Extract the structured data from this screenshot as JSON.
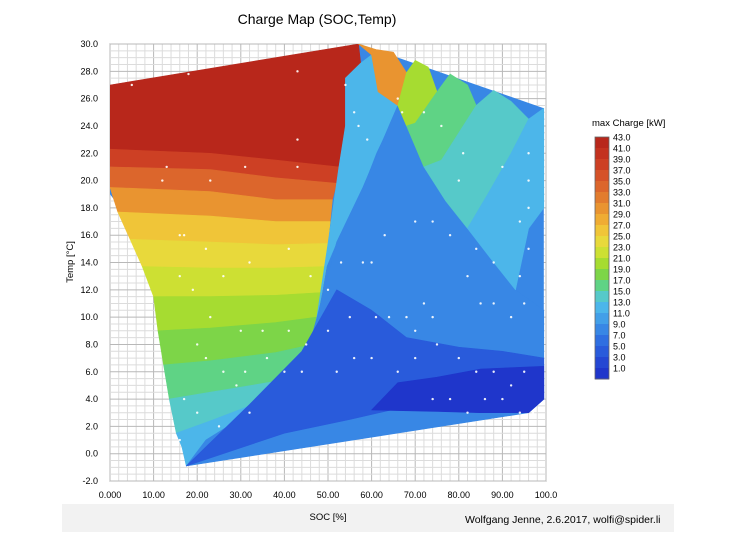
{
  "chart_data": {
    "type": "heatmap",
    "title": "Charge Map (SOC,Temp)",
    "xlabel": "SOC [%]",
    "ylabel": "Temp [°C]",
    "xlim": [
      0,
      100
    ],
    "ylim": [
      -2,
      30
    ],
    "x_tick_labels": [
      "0.000",
      "10.00",
      "20.00",
      "30.00",
      "40.00",
      "50.00",
      "60.00",
      "70.00",
      "80.00",
      "90.00",
      "100.0"
    ],
    "y_tick_labels": [
      "-2.0",
      "0.0",
      "2.0",
      "4.0",
      "6.0",
      "8.0",
      "10.0",
      "12.0",
      "14.0",
      "16.0",
      "18.0",
      "20.0",
      "22.0",
      "24.0",
      "26.0",
      "28.0",
      "30.0"
    ],
    "grid": true,
    "colorbar": {
      "title": "max Charge [kW]",
      "placement": "right",
      "labels": [
        "43.0",
        "41.0",
        "39.0",
        "37.0",
        "35.0",
        "33.0",
        "31.0",
        "29.0",
        "27.0",
        "25.0",
        "23.0",
        "21.0",
        "19.0",
        "17.0",
        "15.0",
        "13.0",
        "11.0",
        "9.0",
        "7.0",
        "5.0",
        "3.0",
        "1.0"
      ],
      "colors": [
        "#b8271b",
        "#c3321f",
        "#cd4024",
        "#d55228",
        "#dc662c",
        "#e27c2e",
        "#e99430",
        "#efac33",
        "#f0c538",
        "#e8d93b",
        "#cde033",
        "#a6dc31",
        "#7dd548",
        "#5fd385",
        "#56c9c9",
        "#4cb6ea",
        "#429fe8",
        "#3887e5",
        "#2f6fe1",
        "#295bdb",
        "#2447d3",
        "#1f36cb"
      ]
    },
    "hull": [
      [
        0,
        27
      ],
      [
        57,
        30
      ],
      [
        99.5,
        25.3
      ],
      [
        99.5,
        4
      ],
      [
        96,
        3
      ],
      [
        17.5,
        -0.9
      ],
      [
        16.5,
        2
      ],
      [
        12,
        14
      ],
      [
        0,
        19
      ]
    ],
    "contours": [
      {
        "label": "43.0",
        "points": [
          [
            0,
            27
          ],
          [
            57,
            30
          ],
          [
            57.5,
            28.6
          ],
          [
            54,
            27.5
          ],
          [
            54,
            24
          ],
          [
            52.5,
            21
          ],
          [
            38,
            21.5
          ],
          [
            23,
            22
          ],
          [
            0,
            22.3
          ]
        ]
      },
      {
        "label": "39.0",
        "points": [
          [
            0,
            22.3
          ],
          [
            23,
            22
          ],
          [
            38,
            21.5
          ],
          [
            52.5,
            21
          ],
          [
            52,
            19.8
          ],
          [
            38,
            20.2
          ],
          [
            23,
            20.8
          ],
          [
            0,
            21
          ]
        ]
      },
      {
        "label": "35.0",
        "points": [
          [
            0,
            21
          ],
          [
            23,
            20.8
          ],
          [
            38,
            20.2
          ],
          [
            52,
            19.8
          ],
          [
            51,
            18.6
          ],
          [
            38,
            18.6
          ],
          [
            23,
            19.2
          ],
          [
            0,
            19.5
          ]
        ]
      },
      {
        "label": "31.0",
        "points": [
          [
            0,
            19.5
          ],
          [
            23,
            19.2
          ],
          [
            38,
            18.6
          ],
          [
            51,
            18.6
          ],
          [
            50.5,
            17
          ],
          [
            38,
            17
          ],
          [
            23,
            17.4
          ],
          [
            1.8,
            17.7
          ]
        ]
      },
      {
        "label": "27.0",
        "points": [
          [
            1.8,
            17.7
          ],
          [
            23,
            17.4
          ],
          [
            38,
            17
          ],
          [
            50.5,
            17
          ],
          [
            50,
            15.4
          ],
          [
            38,
            15.3
          ],
          [
            23,
            15.5
          ],
          [
            4.6,
            15.7
          ]
        ]
      },
      {
        "label": "25.0",
        "points": [
          [
            4.6,
            15.7
          ],
          [
            23,
            15.5
          ],
          [
            38,
            15.3
          ],
          [
            50,
            15.4
          ],
          [
            49.6,
            13.7
          ],
          [
            38,
            13.6
          ],
          [
            23,
            13.6
          ],
          [
            7.4,
            13.7
          ]
        ]
      },
      {
        "label": "23.0",
        "points": [
          [
            7.4,
            13.7
          ],
          [
            23,
            13.6
          ],
          [
            38,
            13.6
          ],
          [
            49.6,
            13.7
          ],
          [
            48.6,
            11.8
          ],
          [
            38,
            11.6
          ],
          [
            23,
            11.5
          ],
          [
            10,
            11.5
          ]
        ]
      },
      {
        "label": "21.0",
        "points": [
          [
            10,
            11.5
          ],
          [
            23,
            11.5
          ],
          [
            38,
            11.6
          ],
          [
            48.6,
            11.8
          ],
          [
            47.5,
            10
          ],
          [
            38,
            9.6
          ],
          [
            23,
            9.2
          ],
          [
            11,
            9
          ]
        ]
      },
      {
        "label": "19.0",
        "points": [
          [
            11,
            9
          ],
          [
            23,
            9.2
          ],
          [
            38,
            9.6
          ],
          [
            47.5,
            10
          ],
          [
            46.5,
            8
          ],
          [
            38,
            7.4
          ],
          [
            23,
            6.8
          ],
          [
            12.3,
            6.5
          ]
        ]
      },
      {
        "label": "17.0",
        "points": [
          [
            12.3,
            6.5
          ],
          [
            23,
            6.8
          ],
          [
            38,
            7.4
          ],
          [
            46.5,
            8
          ],
          [
            44,
            6
          ],
          [
            38,
            5.3
          ],
          [
            23,
            4.5
          ],
          [
            13.6,
            4
          ]
        ]
      },
      {
        "label": "15.0",
        "points": [
          [
            13.6,
            4
          ],
          [
            23,
            4.5
          ],
          [
            38,
            5.3
          ],
          [
            44,
            6
          ],
          [
            38,
            4.5
          ],
          [
            32,
            3.5
          ],
          [
            23,
            2.4
          ],
          [
            15.2,
            1.5
          ]
        ]
      },
      {
        "label": "13.0",
        "points": [
          [
            15.2,
            1.5
          ],
          [
            23,
            2.4
          ],
          [
            32,
            3.5
          ],
          [
            38,
            4.5
          ],
          [
            44,
            6
          ],
          [
            46.5,
            8
          ],
          [
            47.5,
            10
          ],
          [
            48.6,
            11.8
          ],
          [
            49.6,
            13.7
          ],
          [
            52,
            15.5
          ],
          [
            55,
            17.3
          ],
          [
            58,
            19.5
          ],
          [
            61,
            22
          ],
          [
            64,
            24
          ],
          [
            66,
            25.5
          ],
          [
            61.5,
            26.5
          ],
          [
            60,
            29.2
          ],
          [
            57.5,
            28.6
          ],
          [
            54,
            27.5
          ],
          [
            54,
            24
          ],
          [
            52.5,
            21
          ],
          [
            50,
            15.4
          ],
          [
            46.5,
            8
          ],
          [
            38,
            4.5
          ],
          [
            30,
            2.6
          ],
          [
            22,
            1
          ],
          [
            17.5,
            -0.9
          ],
          [
            16.5,
            0.5
          ]
        ]
      },
      {
        "label": "9.0",
        "points": [
          [
            17.5,
            -0.9
          ],
          [
            22,
            1
          ],
          [
            30,
            2.6
          ],
          [
            38,
            4.5
          ],
          [
            44,
            6
          ],
          [
            47.5,
            10
          ],
          [
            52,
            15.5
          ],
          [
            58,
            19.5
          ],
          [
            64,
            24
          ],
          [
            66,
            25.5
          ],
          [
            68,
            24
          ],
          [
            72,
            21
          ],
          [
            77,
            18.5
          ],
          [
            82,
            16.5
          ],
          [
            88,
            14
          ],
          [
            93,
            12
          ],
          [
            99.5,
            10.5
          ],
          [
            99.5,
            4
          ],
          [
            96,
            3
          ]
        ]
      },
      {
        "label": "5.0",
        "points": [
          [
            17.5,
            -0.9
          ],
          [
            40,
            1.5
          ],
          [
            55,
            2.5
          ],
          [
            70,
            3.6
          ],
          [
            82,
            3.2
          ],
          [
            96,
            3
          ],
          [
            99.5,
            4
          ],
          [
            99.5,
            7
          ],
          [
            90,
            7.5
          ],
          [
            80,
            7.8
          ],
          [
            68,
            8.5
          ],
          [
            60,
            10.5
          ],
          [
            52,
            12
          ],
          [
            44,
            7.5
          ],
          [
            32,
            3.6
          ]
        ]
      },
      {
        "label": "1.0",
        "points": [
          [
            60,
            3.2
          ],
          [
            75,
            3.1
          ],
          [
            85,
            3.0
          ],
          [
            96,
            3
          ],
          [
            99.5,
            4
          ],
          [
            99.5,
            6.4
          ],
          [
            92,
            6.3
          ],
          [
            85,
            6.2
          ],
          [
            75,
            5.6
          ],
          [
            66,
            5.2
          ]
        ]
      },
      {
        "label": "31.0",
        "points": [
          [
            57,
            30
          ],
          [
            60,
            29.2
          ],
          [
            61.5,
            26.5
          ],
          [
            66,
            25.5
          ],
          [
            68,
            27.9
          ],
          [
            65,
            29.4
          ],
          [
            61,
            29.6
          ]
        ]
      },
      {
        "label": "21.0",
        "points": [
          [
            66,
            25.5
          ],
          [
            68,
            27.9
          ],
          [
            70,
            28.8
          ],
          [
            73,
            28.3
          ],
          [
            75,
            26.5
          ],
          [
            70,
            24.2
          ],
          [
            68,
            24
          ]
        ]
      },
      {
        "label": "17.0",
        "points": [
          [
            68,
            24
          ],
          [
            70,
            24.2
          ],
          [
            75,
            26.5
          ],
          [
            78,
            27.8
          ],
          [
            82,
            27
          ],
          [
            84,
            25.5
          ],
          [
            80,
            23.5
          ],
          [
            76,
            21.5
          ],
          [
            72,
            21
          ]
        ]
      },
      {
        "label": "15.0",
        "points": [
          [
            72,
            21
          ],
          [
            76,
            21.5
          ],
          [
            80,
            23.5
          ],
          [
            84,
            25.5
          ],
          [
            88,
            26.6
          ],
          [
            92,
            25.8
          ],
          [
            96,
            24.5
          ],
          [
            92,
            22
          ],
          [
            87,
            19.2
          ],
          [
            82,
            16.5
          ],
          [
            77,
            18.5
          ]
        ]
      },
      {
        "label": "13.0",
        "points": [
          [
            82,
            16.5
          ],
          [
            87,
            19.2
          ],
          [
            92,
            22
          ],
          [
            96,
            24.5
          ],
          [
            99.5,
            25.3
          ],
          [
            99.5,
            18
          ],
          [
            96,
            16.5
          ],
          [
            93,
            12
          ],
          [
            88,
            14
          ]
        ]
      }
    ],
    "samples": [
      [
        5,
        27
      ],
      [
        18,
        27.8
      ],
      [
        43,
        28
      ],
      [
        54,
        27
      ],
      [
        23,
        20
      ],
      [
        31,
        21
      ],
      [
        43,
        21
      ],
      [
        43,
        23
      ],
      [
        59,
        23
      ],
      [
        12,
        20
      ],
      [
        13,
        21
      ],
      [
        16,
        16
      ],
      [
        17,
        16
      ],
      [
        22,
        15
      ],
      [
        26,
        13
      ],
      [
        32,
        14
      ],
      [
        41,
        15
      ],
      [
        46,
        13
      ],
      [
        50,
        12
      ],
      [
        53,
        14
      ],
      [
        58,
        14
      ],
      [
        60,
        14
      ],
      [
        63,
        16
      ],
      [
        70,
        17
      ],
      [
        74,
        17
      ],
      [
        78,
        16
      ],
      [
        84,
        15
      ],
      [
        88,
        14
      ],
      [
        94,
        13
      ],
      [
        96,
        15
      ],
      [
        85,
        11
      ],
      [
        82,
        13
      ],
      [
        88,
        11
      ],
      [
        92,
        10
      ],
      [
        95,
        11
      ],
      [
        72,
        11
      ],
      [
        74,
        10
      ],
      [
        70,
        9
      ],
      [
        68,
        10
      ],
      [
        64,
        10
      ],
      [
        61,
        10
      ],
      [
        55,
        10
      ],
      [
        50,
        9
      ],
      [
        45,
        8
      ],
      [
        41,
        9
      ],
      [
        35,
        9
      ],
      [
        30,
        9
      ],
      [
        23,
        10
      ],
      [
        19,
        12
      ],
      [
        16,
        13
      ],
      [
        20,
        8
      ],
      [
        22,
        7
      ],
      [
        26,
        6
      ],
      [
        31,
        6
      ],
      [
        36,
        7
      ],
      [
        40,
        6
      ],
      [
        44,
        6
      ],
      [
        52,
        6
      ],
      [
        56,
        7
      ],
      [
        60,
        7
      ],
      [
        66,
        6
      ],
      [
        70,
        7
      ],
      [
        75,
        8
      ],
      [
        80,
        7
      ],
      [
        84,
        6
      ],
      [
        88,
        6
      ],
      [
        92,
        5
      ],
      [
        95,
        6
      ],
      [
        74,
        4
      ],
      [
        78,
        4
      ],
      [
        82,
        3
      ],
      [
        86,
        4
      ],
      [
        90,
        4
      ],
      [
        94,
        3
      ],
      [
        97,
        3
      ],
      [
        96,
        20
      ],
      [
        96,
        22
      ],
      [
        90,
        21
      ],
      [
        94,
        17
      ],
      [
        96,
        18
      ],
      [
        80,
        20
      ],
      [
        81,
        22
      ],
      [
        76,
        24
      ],
      [
        72,
        25
      ],
      [
        67,
        25
      ],
      [
        66,
        26
      ],
      [
        57,
        24
      ],
      [
        56,
        25
      ],
      [
        20,
        3
      ],
      [
        25,
        2
      ],
      [
        32,
        3
      ],
      [
        16,
        1
      ],
      [
        17,
        4
      ],
      [
        29,
        5
      ]
    ]
  },
  "credit": "Wolfgang Jenne, 2.6.2017, wolfi@spider.li"
}
